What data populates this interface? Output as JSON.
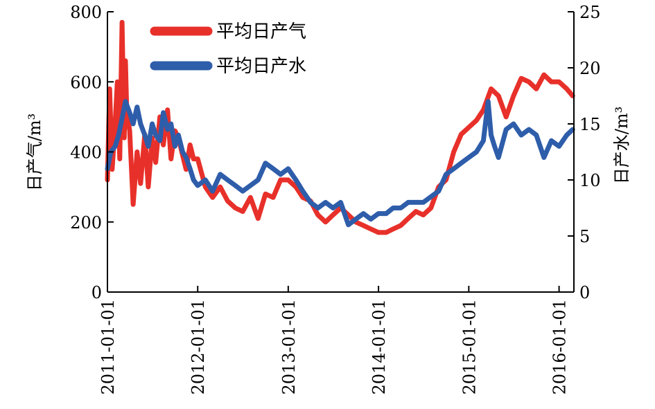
{
  "chart_data": {
    "type": "line",
    "title": "",
    "xlabel": "",
    "ylabel_left": "日产气/m³",
    "ylabel_right": "日产水/m³",
    "ylim_left": [
      0,
      800
    ],
    "ylim_right": [
      0,
      25
    ],
    "yticks_left": [
      0,
      200,
      400,
      600,
      800
    ],
    "yticks_right": [
      0,
      5,
      10,
      15,
      20,
      25
    ],
    "xlim": [
      "2011-01-01",
      "2016-03-01"
    ],
    "xticks": [
      "2011-01-01",
      "2012-01-01",
      "2013-01-01",
      "2014-01-01",
      "2015-01-01",
      "2016-01-01"
    ],
    "grid": false,
    "legend_position": "top-left",
    "series": [
      {
        "name": "平均日产气",
        "axis": "left",
        "color": "#e8302a",
        "x": [
          "2011-01-01",
          "2011-01-10",
          "2011-01-20",
          "2011-02-01",
          "2011-02-10",
          "2011-02-20",
          "2011-03-01",
          "2011-03-05",
          "2011-03-10",
          "2011-03-15",
          "2011-03-20",
          "2011-04-01",
          "2011-04-15",
          "2011-05-01",
          "2011-05-15",
          "2011-06-01",
          "2011-06-15",
          "2011-07-01",
          "2011-07-15",
          "2011-08-01",
          "2011-08-15",
          "2011-09-01",
          "2011-09-15",
          "2011-10-01",
          "2011-10-15",
          "2011-11-01",
          "2011-11-15",
          "2011-12-01",
          "2011-12-15",
          "2012-01-01",
          "2012-02-01",
          "2012-03-01",
          "2012-04-01",
          "2012-05-01",
          "2012-06-01",
          "2012-07-01",
          "2012-08-01",
          "2012-09-01",
          "2012-10-01",
          "2012-11-01",
          "2012-12-01",
          "2013-01-01",
          "2013-02-01",
          "2013-03-01",
          "2013-04-01",
          "2013-05-01",
          "2013-06-01",
          "2013-07-01",
          "2013-08-01",
          "2013-09-01",
          "2013-10-01",
          "2013-11-01",
          "2013-12-01",
          "2014-01-01",
          "2014-02-01",
          "2014-03-01",
          "2014-04-01",
          "2014-05-01",
          "2014-06-01",
          "2014-07-01",
          "2014-08-01",
          "2014-09-01",
          "2014-10-01",
          "2014-11-01",
          "2014-12-01",
          "2015-01-01",
          "2015-02-01",
          "2015-03-01",
          "2015-04-01",
          "2015-05-01",
          "2015-06-01",
          "2015-07-01",
          "2015-08-01",
          "2015-09-01",
          "2015-10-01",
          "2015-11-01",
          "2015-12-01",
          "2016-01-01",
          "2016-02-01",
          "2016-02-25"
        ],
        "values": [
          320,
          580,
          350,
          480,
          600,
          380,
          770,
          620,
          440,
          660,
          520,
          460,
          250,
          400,
          310,
          450,
          300,
          440,
          370,
          500,
          420,
          520,
          380,
          460,
          440,
          390,
          350,
          420,
          380,
          380,
          300,
          270,
          300,
          260,
          240,
          230,
          270,
          210,
          280,
          270,
          320,
          320,
          300,
          270,
          260,
          220,
          200,
          220,
          240,
          220,
          200,
          190,
          180,
          170,
          170,
          180,
          190,
          210,
          230,
          220,
          240,
          300,
          320,
          400,
          450,
          470,
          490,
          520,
          580,
          560,
          500,
          560,
          610,
          600,
          580,
          620,
          600,
          600,
          580,
          560
        ]
      },
      {
        "name": "平均日产水",
        "axis": "right",
        "color": "#2e5daa",
        "x": [
          "2011-01-01",
          "2011-01-15",
          "2011-02-01",
          "2011-02-15",
          "2011-03-01",
          "2011-03-15",
          "2011-04-01",
          "2011-04-15",
          "2011-05-01",
          "2011-05-15",
          "2011-06-01",
          "2011-06-15",
          "2011-07-01",
          "2011-07-15",
          "2011-08-01",
          "2011-08-15",
          "2011-09-01",
          "2011-09-15",
          "2011-10-01",
          "2011-10-15",
          "2011-11-01",
          "2011-11-15",
          "2011-12-01",
          "2011-12-15",
          "2012-01-01",
          "2012-02-01",
          "2012-03-01",
          "2012-04-01",
          "2012-05-01",
          "2012-06-01",
          "2012-07-01",
          "2012-08-01",
          "2012-09-01",
          "2012-10-01",
          "2012-11-01",
          "2012-12-01",
          "2013-01-01",
          "2013-02-01",
          "2013-03-01",
          "2013-04-01",
          "2013-05-01",
          "2013-06-01",
          "2013-07-01",
          "2013-08-01",
          "2013-09-01",
          "2013-10-01",
          "2013-11-01",
          "2013-12-01",
          "2014-01-01",
          "2014-02-01",
          "2014-03-01",
          "2014-04-01",
          "2014-05-01",
          "2014-06-01",
          "2014-07-01",
          "2014-08-01",
          "2014-09-01",
          "2014-10-01",
          "2014-11-01",
          "2014-12-01",
          "2015-01-01",
          "2015-02-01",
          "2015-03-01",
          "2015-03-20",
          "2015-04-01",
          "2015-04-15",
          "2015-05-01",
          "2015-06-01",
          "2015-07-01",
          "2015-08-01",
          "2015-09-01",
          "2015-10-01",
          "2015-11-01",
          "2015-12-01",
          "2016-01-01",
          "2016-02-01",
          "2016-02-25"
        ],
        "values": [
          11,
          12.5,
          13,
          14,
          15.5,
          17,
          16,
          15,
          16.5,
          15,
          14,
          13,
          15,
          14,
          13.5,
          16,
          14.5,
          15,
          13,
          14,
          12.5,
          12,
          11,
          10,
          9.5,
          10,
          9,
          10.5,
          10,
          9.5,
          9,
          9.5,
          10,
          11.5,
          11,
          10.5,
          11,
          10,
          9,
          8,
          7.5,
          8,
          7.5,
          8,
          6,
          6.5,
          7,
          6.5,
          7,
          7,
          7.5,
          7.5,
          8,
          8,
          8,
          8.5,
          9,
          10.5,
          11,
          11.5,
          12,
          12.5,
          13.5,
          17,
          14,
          13,
          12,
          14.5,
          15,
          14,
          14.5,
          14,
          12,
          13.5,
          13,
          14,
          14.5
        ]
      }
    ]
  }
}
